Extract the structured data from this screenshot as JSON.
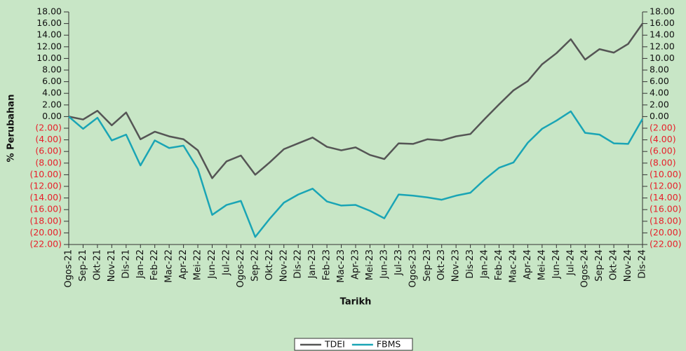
{
  "chart_data": {
    "type": "line",
    "ylabel": "% Perubahan",
    "xlabel": "Tarikh",
    "categories": [
      "Ogos-21",
      "Sep-21",
      "Okt-21",
      "Nov-21",
      "Dis-21",
      "Jan-22",
      "Feb-22",
      "Mac-22",
      "Apr-22",
      "Mei-22",
      "Jun-22",
      "Jul-22",
      "Ogos-22",
      "Sep-22",
      "Okt-22",
      "Nov-22",
      "Dis-22",
      "Jan-23",
      "Feb-23",
      "Mac-23",
      "Apr-23",
      "Mei-23",
      "Jun-23",
      "Jul-23",
      "Ogos-23",
      "Sep-23",
      "Okt-23",
      "Nov-23",
      "Dis-23",
      "Jan-24",
      "Feb-24",
      "Mac-24",
      "Apr-24",
      "Mei-24",
      "Jun-24",
      "Jul-24",
      "Ogos-24",
      "Sep-24",
      "Okt-24",
      "Nov-24",
      "Dis-24"
    ],
    "series": [
      {
        "name": "TDEI",
        "color": "#555555",
        "values": [
          0,
          -0.5,
          1,
          -1.5,
          0.7,
          -3.9,
          -2.6,
          -3.4,
          -3.9,
          -5.8,
          -10.6,
          -7.7,
          -6.7,
          -10,
          -7.9,
          -5.6,
          -4.6,
          -3.6,
          -5.2,
          -5.8,
          -5.3,
          -6.6,
          -7.3,
          -4.6,
          -4.7,
          -3.9,
          -4.1,
          -3.4,
          -3,
          -0.4,
          2.1,
          4.5,
          6.1,
          9,
          10.9,
          13.3,
          9.8,
          11.6,
          11,
          12.5,
          16
        ]
      },
      {
        "name": "FBMS",
        "color": "#1aa5b5",
        "values": [
          0,
          -2.1,
          -0.2,
          -4.1,
          -3.1,
          -8.4,
          -4.1,
          -5.4,
          -5,
          -9,
          -16.9,
          -15.2,
          -14.5,
          -20.7,
          -17.6,
          -14.8,
          -13.4,
          -12.4,
          -14.6,
          -15.3,
          -15.2,
          -16.2,
          -17.5,
          -13.4,
          -13.6,
          -13.9,
          -14.3,
          -13.6,
          -13.1,
          -10.8,
          -8.8,
          -7.9,
          -4.5,
          -2.1,
          -0.7,
          0.9,
          -2.8,
          -3.1,
          -4.6,
          -4.7,
          -0.4
        ]
      }
    ],
    "ylim": [
      -22,
      18
    ],
    "yticks": [
      {
        "value": 18,
        "label": "18.00"
      },
      {
        "value": 16,
        "label": "16.00"
      },
      {
        "value": 14,
        "label": "14.00"
      },
      {
        "value": 12,
        "label": "12.00"
      },
      {
        "value": 10,
        "label": "10.00"
      },
      {
        "value": 8,
        "label": "8.00"
      },
      {
        "value": 6,
        "label": "6.00"
      },
      {
        "value": 4,
        "label": "4.00"
      },
      {
        "value": 2,
        "label": "2.00"
      },
      {
        "value": 0,
        "label": "0.00"
      },
      {
        "value": -2,
        "label": "(2.00)"
      },
      {
        "value": -4,
        "label": "(4.00)"
      },
      {
        "value": -6,
        "label": "(6.00)"
      },
      {
        "value": -8,
        "label": "(8.00)"
      },
      {
        "value": -10,
        "label": "(10.00)"
      },
      {
        "value": -12,
        "label": "(12.00)"
      },
      {
        "value": -14,
        "label": "(14.00)"
      },
      {
        "value": -16,
        "label": "(16.00)"
      },
      {
        "value": -18,
        "label": "(18.00)"
      },
      {
        "value": -20,
        "label": "(20.00)"
      },
      {
        "value": -22,
        "label": "(22.00)"
      }
    ],
    "y2lim": [
      -22,
      18
    ],
    "y2ticks": [
      {
        "value": 18,
        "label": "18.00"
      },
      {
        "value": 16,
        "label": "16.00"
      },
      {
        "value": 14,
        "label": "14.00"
      },
      {
        "value": 12,
        "label": "12.00"
      },
      {
        "value": 10,
        "label": "10.00"
      },
      {
        "value": 8,
        "label": "8.00"
      },
      {
        "value": 6,
        "label": "6.00"
      },
      {
        "value": 4,
        "label": "4.00"
      },
      {
        "value": 2,
        "label": "2.00"
      },
      {
        "value": 0,
        "label": "0.00"
      },
      {
        "value": -2,
        "label": "(2.00)"
      },
      {
        "value": -4,
        "label": "(4.00)"
      },
      {
        "value": -6,
        "label": "(6.00)"
      },
      {
        "value": -8,
        "label": "(8.00)"
      },
      {
        "value": -10,
        "label": "(10.00)"
      },
      {
        "value": -12,
        "label": "(12.00)"
      },
      {
        "value": -14,
        "label": "(14.00)"
      },
      {
        "value": -16,
        "label": "(16.00)"
      },
      {
        "value": -18,
        "label": "(18.00)"
      },
      {
        "value": -20,
        "label": "(20.00)"
      },
      {
        "value": -22,
        "label": "(22.00)"
      }
    ],
    "negative_tick_color": "#e8202a",
    "legend": "bottom"
  }
}
